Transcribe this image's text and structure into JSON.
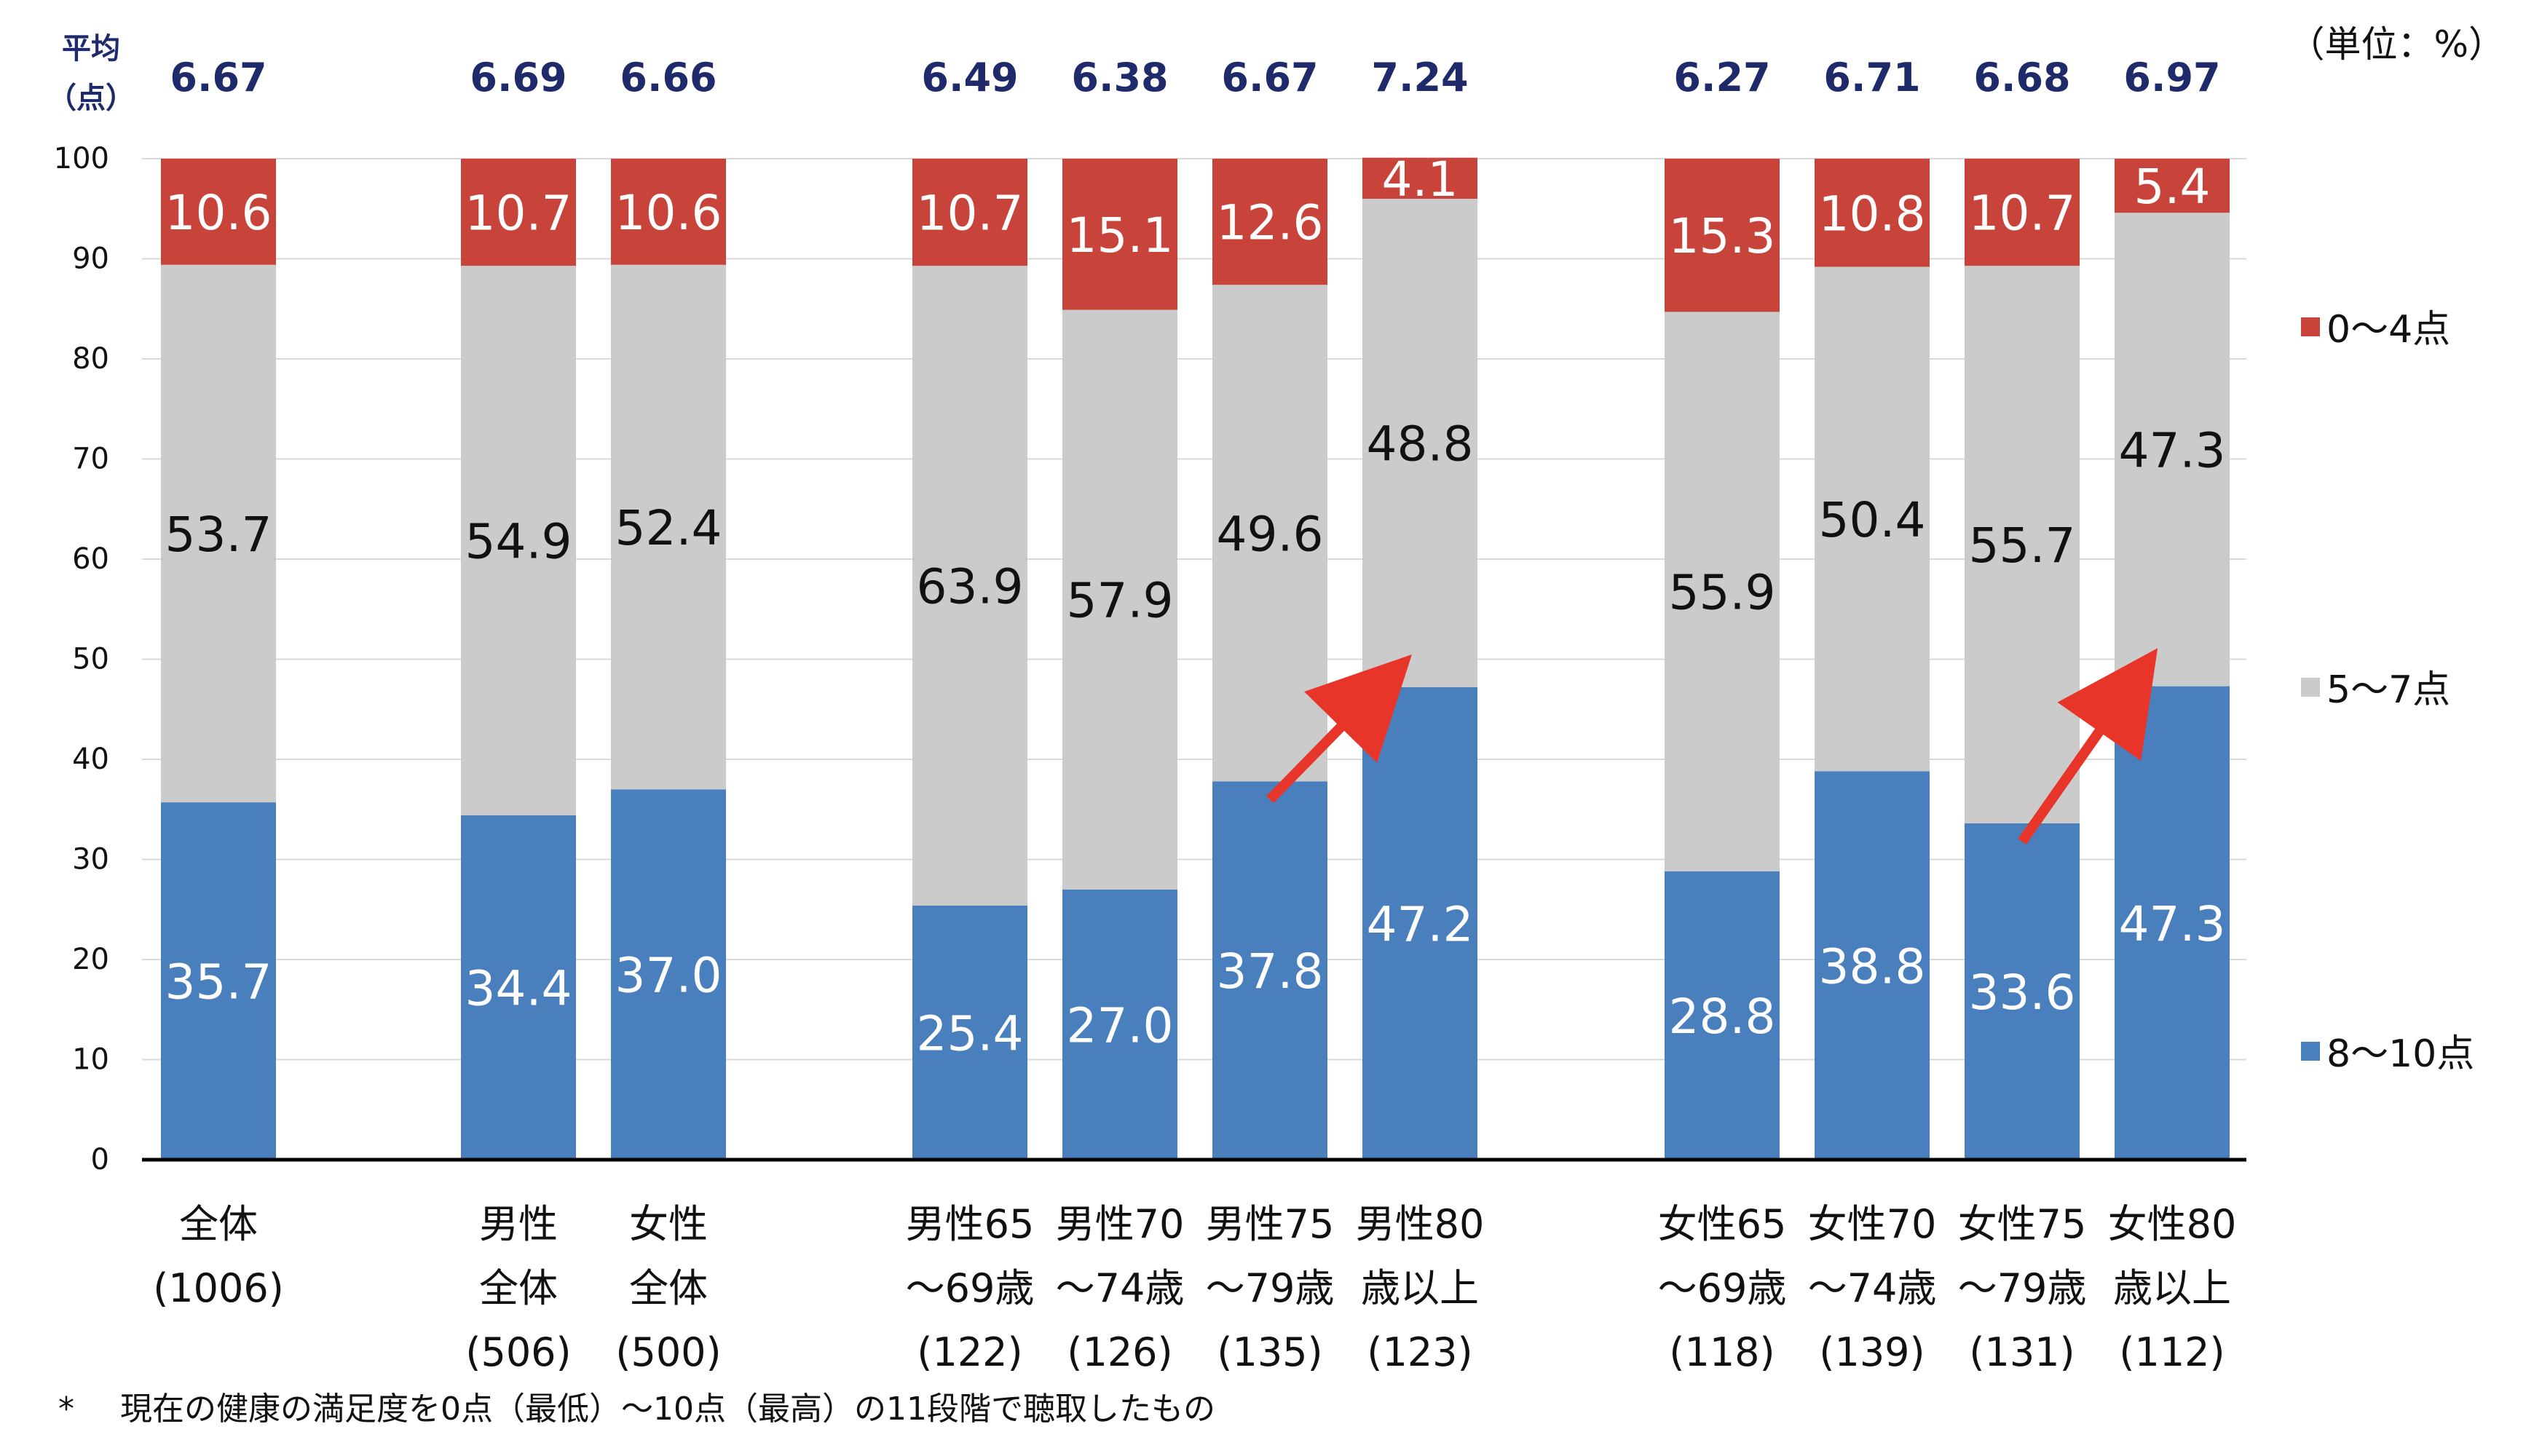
{
  "chart_data": {
    "type": "bar",
    "stacked": true,
    "unit_label": "（単位：%）",
    "average_heading": [
      "平均",
      "（点）"
    ],
    "footnote_marker": "*",
    "footnote": "現在の健康の満足度を0点（最低）～10点（最高）の11段階で聴取したもの",
    "ylim": [
      0,
      100
    ],
    "yticks": [
      "0",
      "10",
      "20",
      "30",
      "40",
      "50",
      "60",
      "70",
      "80",
      "90",
      "100"
    ],
    "series": [
      {
        "name": "8～10点",
        "color": "#4a7fbd",
        "label_color": "#ffffff",
        "values": [
          35.7,
          34.4,
          37.0,
          25.4,
          27.0,
          37.8,
          47.2,
          28.8,
          38.8,
          33.6,
          47.3
        ],
        "labels": [
          "35.7",
          "34.4",
          "37.0",
          "25.4",
          "27.0",
          "37.8",
          "47.2",
          "28.8",
          "38.8",
          "33.6",
          "47.3"
        ]
      },
      {
        "name": "5～7点",
        "color": "#cbcbcb",
        "label_color": "#111111",
        "values": [
          53.7,
          54.9,
          52.4,
          63.9,
          57.9,
          49.6,
          48.8,
          55.9,
          50.4,
          55.7,
          47.3
        ],
        "labels": [
          "53.7",
          "54.9",
          "52.4",
          "63.9",
          "57.9",
          "49.6",
          "48.8",
          "55.9",
          "50.4",
          "55.7",
          "47.3"
        ]
      },
      {
        "name": "0～4点",
        "color": "#c8443b",
        "label_color": "#ffffff",
        "values": [
          10.6,
          10.7,
          10.6,
          10.7,
          15.1,
          12.6,
          4.1,
          15.3,
          10.8,
          10.7,
          5.4
        ],
        "labels": [
          "10.6",
          "10.7",
          "10.6",
          "10.7",
          "15.1",
          "12.6",
          "4.1",
          "15.3",
          "10.8",
          "10.7",
          "5.4"
        ]
      }
    ],
    "legend": [
      "0～4点",
      "5～7点",
      "8～10点"
    ],
    "categories": [
      {
        "lines": [
          "全体",
          "(1006)"
        ],
        "average": "6.67"
      },
      {
        "lines": [
          "男性",
          "全体",
          "(506)"
        ],
        "average": "6.69"
      },
      {
        "lines": [
          "女性",
          "全体",
          "(500)"
        ],
        "average": "6.66"
      },
      {
        "lines": [
          "男性65",
          "～69歳",
          "(122)"
        ],
        "average": "6.49"
      },
      {
        "lines": [
          "男性70",
          "～74歳",
          "(126)"
        ],
        "average": "6.38"
      },
      {
        "lines": [
          "男性75",
          "～79歳",
          "(135)"
        ],
        "average": "6.67"
      },
      {
        "lines": [
          "男性80",
          "歳以上",
          "(123)"
        ],
        "average": "7.24"
      },
      {
        "lines": [
          "女性65",
          "～69歳",
          "(118)"
        ],
        "average": "6.27"
      },
      {
        "lines": [
          "女性70",
          "～74歳",
          "(139)"
        ],
        "average": "6.71"
      },
      {
        "lines": [
          "女性75",
          "～79歳",
          "(131)"
        ],
        "average": "6.68"
      },
      {
        "lines": [
          "女性80",
          "歳以上",
          "(112)"
        ],
        "average": "6.97"
      }
    ],
    "highlights": [
      {
        "from": 5,
        "to": 6
      },
      {
        "from": 9,
        "to": 10
      }
    ],
    "highlight_color": "#e8352a"
  }
}
